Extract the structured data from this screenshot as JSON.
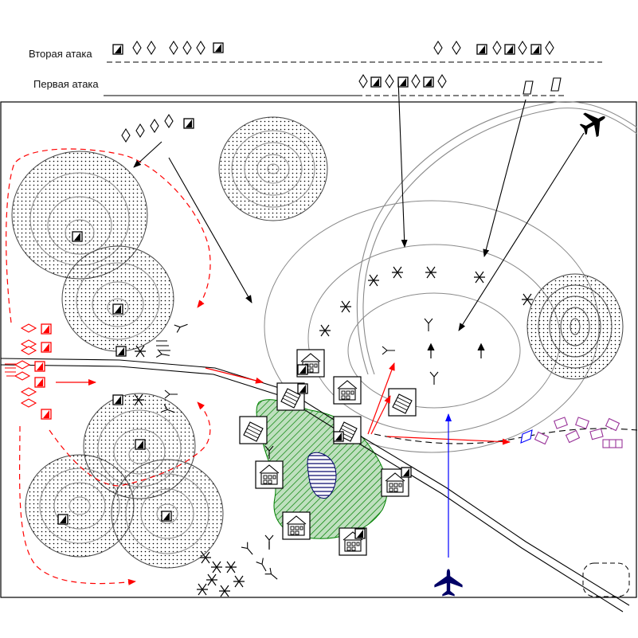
{
  "labels": {
    "second_attack": "Вторая атака",
    "first_attack": "Первая атака"
  },
  "colors": {
    "black": "#000000",
    "red": "#ff0000",
    "blue": "#0000ff",
    "purple": "#993399",
    "green": "#008000",
    "navy": "#000066",
    "gray": "#8a8a8a"
  },
  "icons": {
    "tank": "square-with-diagonal-fill",
    "infantry_vehicle": "diamond",
    "aircraft": "aircraft-silhouette",
    "building": "house-in-frame",
    "anti_tank": "star-cross-obstacle"
  }
}
